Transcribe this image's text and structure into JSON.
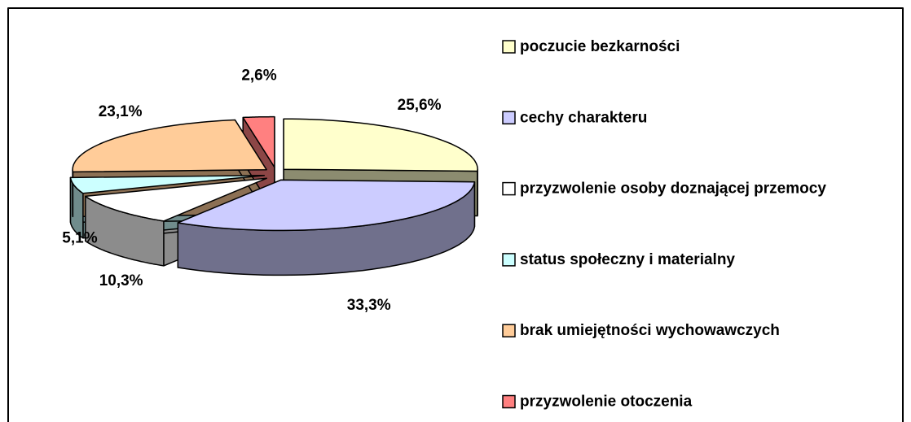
{
  "chart_data": {
    "type": "pie",
    "categories": [
      "poczucie bezkarności",
      "cechy charakteru",
      "przyzwolenie osoby doznającej przemocy",
      "status społeczny i materialny",
      "brak umiejętności wychowawczych",
      "przyzwolenie otoczenia"
    ],
    "values": [
      25.6,
      33.3,
      10.3,
      5.1,
      23.1,
      2.6
    ],
    "value_labels": [
      "25,6%",
      "33,3%",
      "10,3%",
      "5,1%",
      "23,1%",
      "2,6%"
    ],
    "colors": [
      "#ffffcc",
      "#ccccff",
      "#ffffff",
      "#ccffff",
      "#ffcc99",
      "#ff8080"
    ],
    "legend": "right"
  }
}
